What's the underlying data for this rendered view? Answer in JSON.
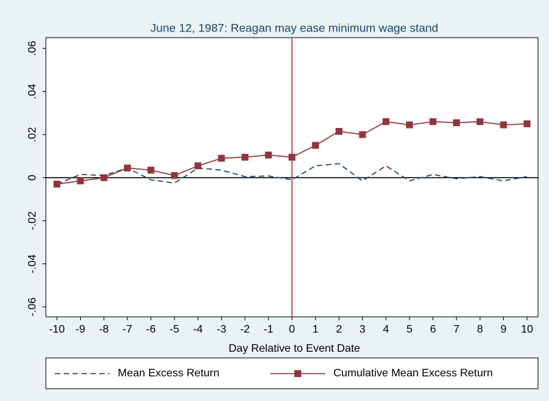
{
  "chart_data": {
    "type": "line",
    "title": "June 12, 1987: Reagan may ease minimum wage stand",
    "x_label": "Day Relative to Event Date",
    "x": [
      -10,
      -9,
      -8,
      -7,
      -6,
      -5,
      -4,
      -3,
      -2,
      -1,
      0,
      1,
      2,
      3,
      4,
      5,
      6,
      7,
      8,
      9,
      10
    ],
    "series": [
      {
        "name": "Mean Excess Return",
        "color": "#1a476f",
        "dash": true,
        "marker": false,
        "values": [
          -0.003,
          0.0015,
          0.001,
          0.0045,
          -0.001,
          -0.0025,
          0.0045,
          0.0035,
          0.0005,
          0.0008,
          -0.001,
          0.0055,
          0.0065,
          -0.0015,
          0.0055,
          -0.0015,
          0.0015,
          -0.0005,
          0.0005,
          -0.0015,
          0.0005
        ]
      },
      {
        "name": "Cumulative Mean Excess Return",
        "color": "#90353b",
        "dash": false,
        "marker": true,
        "values": [
          -0.003,
          -0.0015,
          0,
          0.0045,
          0.0035,
          0.001,
          0.0055,
          0.009,
          0.0095,
          0.0105,
          0.0095,
          0.015,
          0.0215,
          0.02,
          0.026,
          0.0245,
          0.026,
          0.0255,
          0.026,
          0.0245,
          0.025
        ]
      }
    ],
    "xlim": [
      -10.47,
      10.47
    ],
    "xticks": [
      -10,
      -9,
      -8,
      -7,
      -6,
      -5,
      -4,
      -3,
      -2,
      -1,
      0,
      1,
      2,
      3,
      4,
      5,
      6,
      7,
      8,
      9,
      10
    ],
    "ylim": [
      -0.0646,
      0.065
    ],
    "yticks": [
      {
        "value": -0.06,
        "label": "-.06"
      },
      {
        "value": -0.04,
        "label": "-.04"
      },
      {
        "value": -0.02,
        "label": "-.02"
      },
      0,
      {
        "value": 0.02,
        "label": ".02"
      },
      {
        "value": 0.04,
        "label": ".04"
      },
      {
        "value": 0.06,
        "label": ".06"
      }
    ],
    "xline": 0,
    "xline_color": "#d62020",
    "yline": 0,
    "yline_color": "#000000",
    "legend": "bottom"
  }
}
